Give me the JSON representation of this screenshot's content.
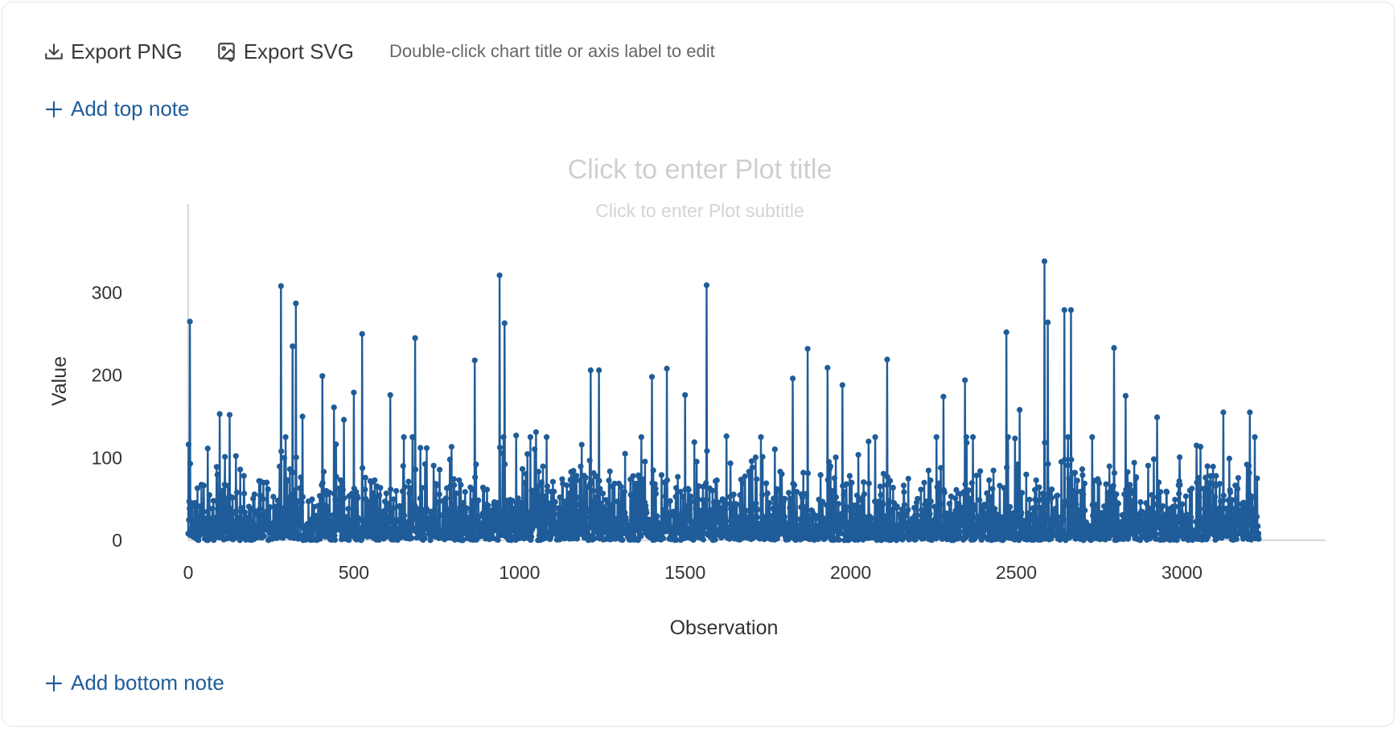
{
  "toolbar": {
    "export_png": "Export PNG",
    "export_svg": "Export SVG",
    "hint": "Double-click chart title or axis label to edit",
    "export_png_icon": "download-icon",
    "export_svg_icon": "image-export-icon"
  },
  "notes": {
    "top": "Add top note",
    "bottom": "Add bottom note",
    "icon": "plus-icon"
  },
  "colors": {
    "series": "#1f5c99",
    "accent": "#1f5c99",
    "placeholder_text": "#c8c8c8",
    "axis": "#c9ccd1"
  },
  "chart_data": {
    "type": "line",
    "title": "Click to enter Plot title",
    "subtitle": "Click to enter Plot subtitle",
    "xlabel": "Observation",
    "ylabel": "Value",
    "xlim": [
      -35,
      3435
    ],
    "ylim": [
      -5,
      360
    ],
    "x_ticks": [
      0,
      500,
      1000,
      1500,
      2000,
      2500,
      3000
    ],
    "y_ticks": [
      0,
      100,
      200,
      300
    ],
    "grid": false,
    "legend": "none",
    "markers": true,
    "n_points": 3233,
    "peaks": [
      [
        5,
        265
      ],
      [
        95,
        153
      ],
      [
        125,
        152
      ],
      [
        280,
        308
      ],
      [
        315,
        235
      ],
      [
        325,
        287
      ],
      [
        345,
        150
      ],
      [
        405,
        199
      ],
      [
        440,
        161
      ],
      [
        470,
        146
      ],
      [
        500,
        179
      ],
      [
        525,
        250
      ],
      [
        610,
        176
      ],
      [
        685,
        245
      ],
      [
        865,
        218
      ],
      [
        940,
        321
      ],
      [
        955,
        263
      ],
      [
        990,
        127
      ],
      [
        1050,
        131
      ],
      [
        1215,
        206
      ],
      [
        1240,
        206
      ],
      [
        1400,
        198
      ],
      [
        1445,
        208
      ],
      [
        1500,
        176
      ],
      [
        1565,
        309
      ],
      [
        1625,
        126
      ],
      [
        1825,
        196
      ],
      [
        1870,
        232
      ],
      [
        1930,
        209
      ],
      [
        1975,
        188
      ],
      [
        2110,
        219
      ],
      [
        2280,
        174
      ],
      [
        2345,
        194
      ],
      [
        2470,
        252
      ],
      [
        2510,
        158
      ],
      [
        2585,
        338
      ],
      [
        2595,
        264
      ],
      [
        2645,
        279
      ],
      [
        2665,
        279
      ],
      [
        2795,
        233
      ],
      [
        2830,
        175
      ],
      [
        2925,
        149
      ],
      [
        3125,
        155
      ],
      [
        3205,
        155
      ]
    ]
  }
}
